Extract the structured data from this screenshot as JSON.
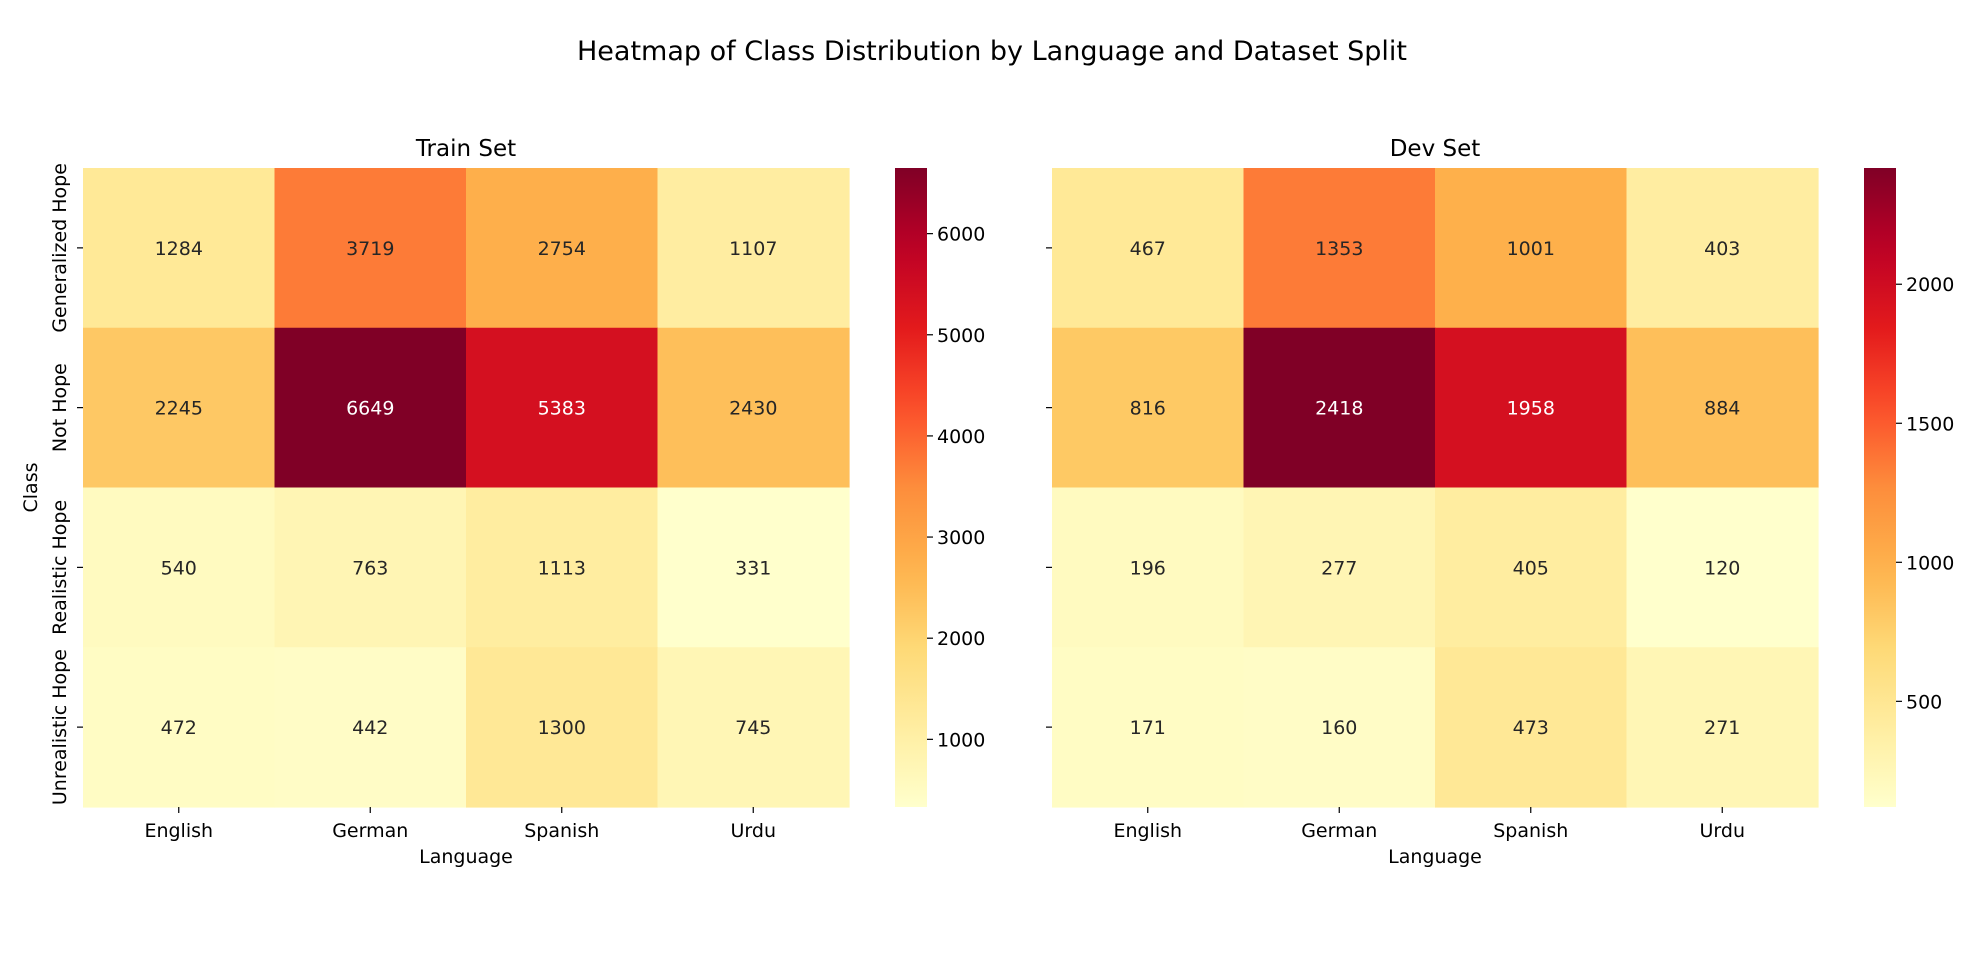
{
  "figure": {
    "title": "Heatmap of Class Distribution by Language and Dataset Split"
  },
  "colormap": {
    "name": "YlOrRd",
    "stops": [
      "#ffffcc",
      "#ffeda0",
      "#fed976",
      "#feb24c",
      "#fd8d3c",
      "#fc4e2a",
      "#e31a1c",
      "#bd0026",
      "#800026"
    ]
  },
  "chart_data": [
    {
      "type": "heatmap",
      "title": "Train Set",
      "xlabel": "Language",
      "ylabel": "Class",
      "x_categories": [
        "English",
        "German",
        "Spanish",
        "Urdu"
      ],
      "y_categories": [
        "Generalized Hope",
        "Not Hope",
        "Realistic Hope",
        "Unrealistic Hope"
      ],
      "values": [
        [
          1284,
          3719,
          2754,
          1107
        ],
        [
          2245,
          6649,
          5383,
          2430
        ],
        [
          540,
          763,
          1113,
          331
        ],
        [
          472,
          442,
          1300,
          745
        ]
      ],
      "vmin": 331,
      "vmax": 6649,
      "colorbar_ticks": [
        1000,
        2000,
        3000,
        4000,
        5000,
        6000
      ]
    },
    {
      "type": "heatmap",
      "title": "Dev Set",
      "xlabel": "Language",
      "ylabel": "",
      "x_categories": [
        "English",
        "German",
        "Spanish",
        "Urdu"
      ],
      "y_categories": [
        "",
        "",
        "",
        ""
      ],
      "values": [
        [
          467,
          1353,
          1001,
          403
        ],
        [
          816,
          2418,
          1958,
          884
        ],
        [
          196,
          277,
          405,
          120
        ],
        [
          171,
          160,
          473,
          271
        ]
      ],
      "vmin": 120,
      "vmax": 2418,
      "colorbar_ticks": [
        500,
        1000,
        1500,
        2000
      ]
    }
  ]
}
